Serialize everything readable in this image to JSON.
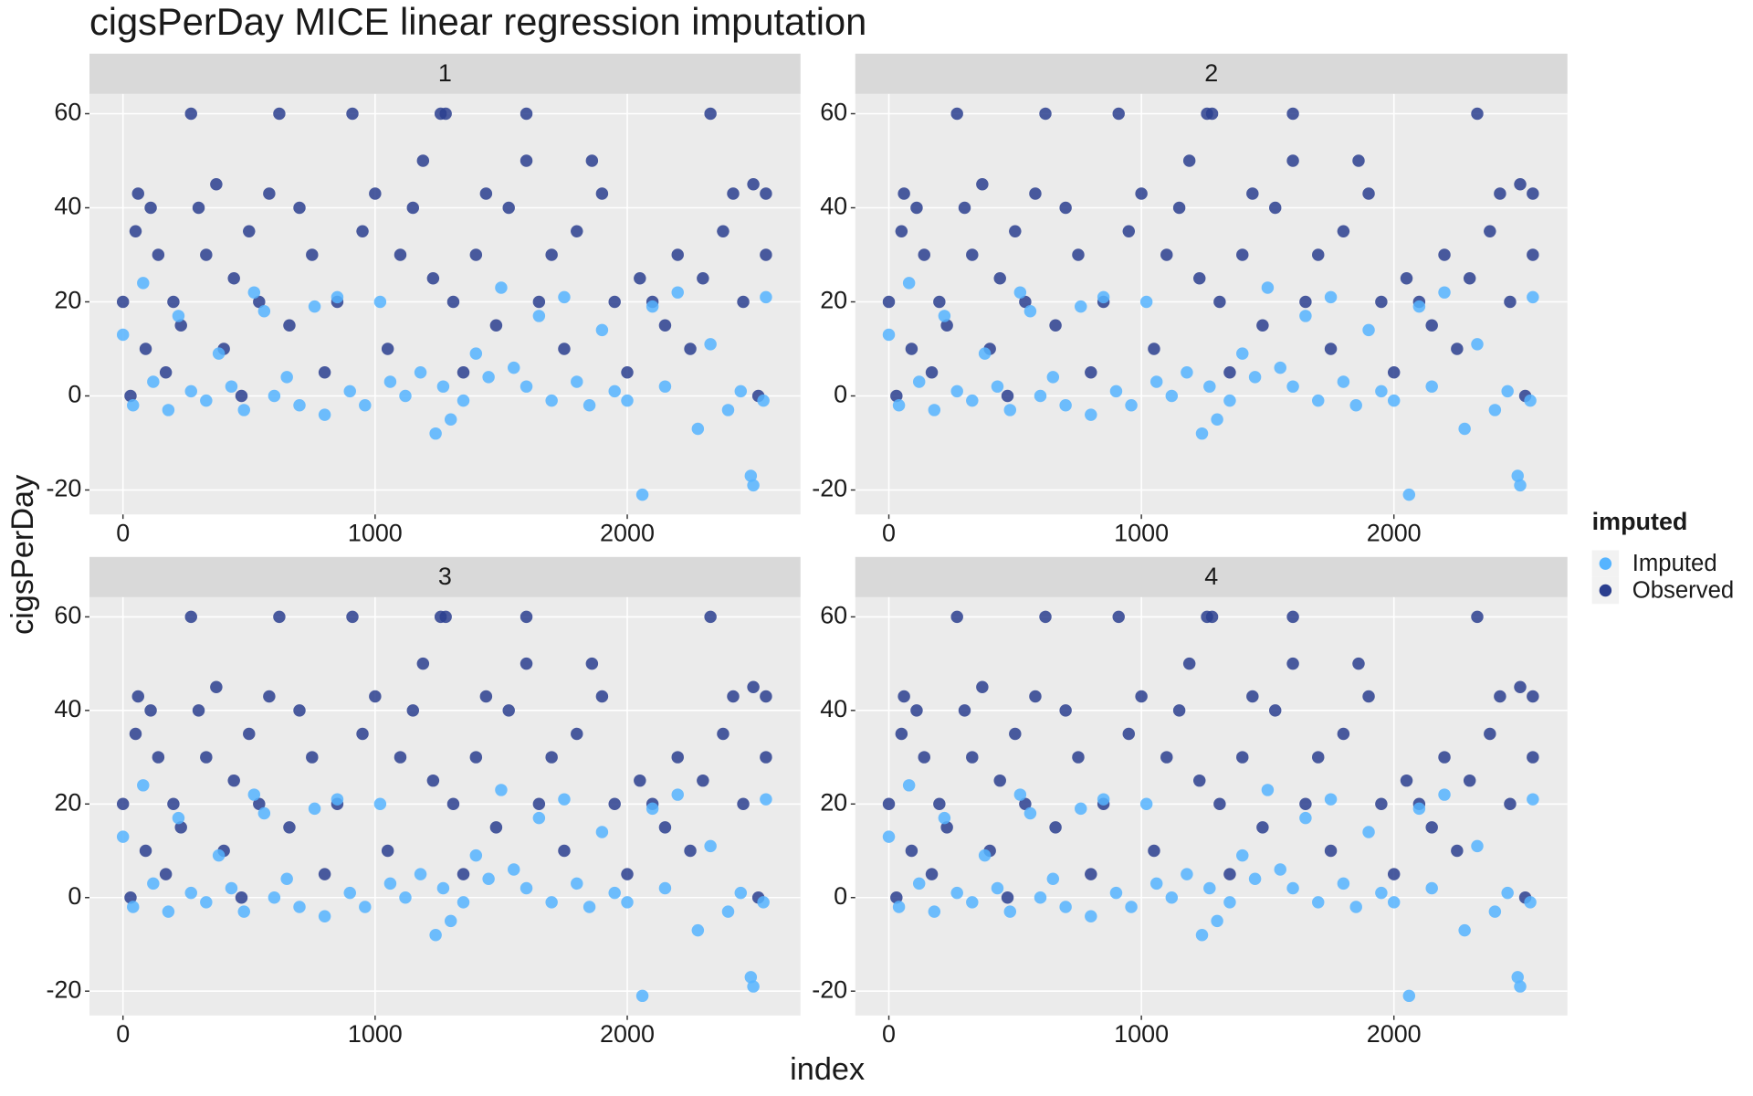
{
  "title": "cigsPerDay MICE linear regression imputation",
  "x_label": "index",
  "y_label": "cigsPerDay",
  "legend_title": "imputed",
  "chart_data": [
    {
      "type": "scatter",
      "panel": "1",
      "xlim": [
        -133,
        2687
      ],
      "ylim": [
        -25.2,
        64.2
      ],
      "xticks": [
        0,
        1000,
        2000
      ],
      "yticks": [
        -20,
        0,
        20,
        40,
        60
      ],
      "grid": true,
      "series": [
        {
          "name": "Imputed",
          "color": "#56B4FF",
          "x": [
            0,
            40,
            80,
            120,
            180,
            220,
            270,
            330,
            380,
            430,
            480,
            520,
            560,
            600,
            650,
            700,
            760,
            800,
            850,
            900,
            960,
            1020,
            1060,
            1120,
            1180,
            1240,
            1270,
            1300,
            1350,
            1400,
            1450,
            1500,
            1550,
            1600,
            1650,
            1700,
            1750,
            1800,
            1850,
            1900,
            1950,
            2000,
            2060,
            2100,
            2150,
            2200,
            2280,
            2330,
            2400,
            2450,
            2490,
            2500,
            2540,
            2550
          ],
          "values": [
            13,
            -2,
            24,
            3,
            -3,
            17,
            1,
            -1,
            9,
            2,
            -3,
            22,
            18,
            0,
            4,
            -2,
            19,
            -4,
            21,
            1,
            -2,
            20,
            3,
            0,
            5,
            -8,
            2,
            -5,
            -1,
            9,
            4,
            23,
            6,
            2,
            17,
            -1,
            21,
            3,
            -2,
            14,
            1,
            -1,
            -21,
            19,
            2,
            22,
            -7,
            11,
            -3,
            1,
            -17,
            -19,
            -1,
            21
          ]
        },
        {
          "name": "Observed",
          "color": "#2B3F8F",
          "x": [
            0,
            30,
            50,
            60,
            90,
            110,
            140,
            170,
            200,
            230,
            270,
            300,
            330,
            370,
            400,
            440,
            470,
            500,
            540,
            580,
            620,
            660,
            700,
            750,
            800,
            850,
            910,
            950,
            1000,
            1050,
            1100,
            1150,
            1190,
            1230,
            1260,
            1280,
            1310,
            1350,
            1400,
            1440,
            1480,
            1530,
            1600,
            1600,
            1650,
            1700,
            1750,
            1800,
            1860,
            1900,
            1950,
            2000,
            2050,
            2100,
            2150,
            2200,
            2250,
            2300,
            2330,
            2380,
            2420,
            2460,
            2500,
            2520,
            2550,
            2550
          ],
          "values": [
            20,
            0,
            35,
            43,
            10,
            40,
            30,
            5,
            20,
            15,
            60,
            40,
            30,
            45,
            10,
            25,
            0,
            35,
            20,
            43,
            60,
            15,
            40,
            30,
            5,
            20,
            60,
            35,
            43,
            10,
            30,
            40,
            50,
            25,
            60,
            60,
            20,
            5,
            30,
            43,
            15,
            40,
            60,
            50,
            20,
            30,
            10,
            35,
            50,
            43,
            20,
            5,
            25,
            20,
            15,
            30,
            10,
            25,
            60,
            35,
            43,
            20,
            45,
            0,
            30,
            43
          ]
        }
      ]
    },
    {
      "type": "scatter",
      "panel": "2",
      "xlim": [
        -133,
        2687
      ],
      "ylim": [
        -25.2,
        64.2
      ],
      "xticks": [
        0,
        1000,
        2000
      ],
      "yticks": [
        -20,
        0,
        20,
        40,
        60
      ],
      "grid": true,
      "series": [
        {
          "name": "Imputed",
          "color": "#56B4FF",
          "x": [
            0,
            40,
            80,
            120,
            180,
            220,
            270,
            330,
            380,
            430,
            480,
            520,
            560,
            600,
            650,
            700,
            760,
            800,
            850,
            900,
            960,
            1020,
            1060,
            1120,
            1180,
            1240,
            1270,
            1300,
            1350,
            1400,
            1450,
            1500,
            1550,
            1600,
            1650,
            1700,
            1750,
            1800,
            1850,
            1900,
            1950,
            2000,
            2060,
            2100,
            2150,
            2200,
            2280,
            2330,
            2400,
            2450,
            2490,
            2500,
            2540,
            2550
          ],
          "values": [
            13,
            -2,
            24,
            3,
            -3,
            17,
            1,
            -1,
            9,
            2,
            -3,
            22,
            18,
            0,
            4,
            -2,
            19,
            -4,
            21,
            1,
            -2,
            20,
            3,
            0,
            5,
            -8,
            2,
            -5,
            -1,
            9,
            4,
            23,
            6,
            2,
            17,
            -1,
            21,
            3,
            -2,
            14,
            1,
            -1,
            -21,
            19,
            2,
            22,
            -7,
            11,
            -3,
            1,
            -17,
            -19,
            -1,
            21
          ]
        },
        {
          "name": "Observed",
          "color": "#2B3F8F",
          "x": [
            0,
            30,
            50,
            60,
            90,
            110,
            140,
            170,
            200,
            230,
            270,
            300,
            330,
            370,
            400,
            440,
            470,
            500,
            540,
            580,
            620,
            660,
            700,
            750,
            800,
            850,
            910,
            950,
            1000,
            1050,
            1100,
            1150,
            1190,
            1230,
            1260,
            1280,
            1310,
            1350,
            1400,
            1440,
            1480,
            1530,
            1600,
            1600,
            1650,
            1700,
            1750,
            1800,
            1860,
            1900,
            1950,
            2000,
            2050,
            2100,
            2150,
            2200,
            2250,
            2300,
            2330,
            2380,
            2420,
            2460,
            2500,
            2520,
            2550,
            2550
          ],
          "values": [
            20,
            0,
            35,
            43,
            10,
            40,
            30,
            5,
            20,
            15,
            60,
            40,
            30,
            45,
            10,
            25,
            0,
            35,
            20,
            43,
            60,
            15,
            40,
            30,
            5,
            20,
            60,
            35,
            43,
            10,
            30,
            40,
            50,
            25,
            60,
            60,
            20,
            5,
            30,
            43,
            15,
            40,
            60,
            50,
            20,
            30,
            10,
            35,
            50,
            43,
            20,
            5,
            25,
            20,
            15,
            30,
            10,
            25,
            60,
            35,
            43,
            20,
            45,
            0,
            30,
            43
          ]
        }
      ]
    },
    {
      "type": "scatter",
      "panel": "3",
      "xlim": [
        -133,
        2687
      ],
      "ylim": [
        -25.2,
        64.2
      ],
      "xticks": [
        0,
        1000,
        2000
      ],
      "yticks": [
        -20,
        0,
        20,
        40,
        60
      ],
      "grid": true,
      "series": [
        {
          "name": "Imputed",
          "color": "#56B4FF",
          "x": [
            0,
            40,
            80,
            120,
            180,
            220,
            270,
            330,
            380,
            430,
            480,
            520,
            560,
            600,
            650,
            700,
            760,
            800,
            850,
            900,
            960,
            1020,
            1060,
            1120,
            1180,
            1240,
            1270,
            1300,
            1350,
            1400,
            1450,
            1500,
            1550,
            1600,
            1650,
            1700,
            1750,
            1800,
            1850,
            1900,
            1950,
            2000,
            2060,
            2100,
            2150,
            2200,
            2280,
            2330,
            2400,
            2450,
            2490,
            2500,
            2540,
            2550
          ],
          "values": [
            13,
            -2,
            24,
            3,
            -3,
            17,
            1,
            -1,
            9,
            2,
            -3,
            22,
            18,
            0,
            4,
            -2,
            19,
            -4,
            21,
            1,
            -2,
            20,
            3,
            0,
            5,
            -8,
            2,
            -5,
            -1,
            9,
            4,
            23,
            6,
            2,
            17,
            -1,
            21,
            3,
            -2,
            14,
            1,
            -1,
            -21,
            19,
            2,
            22,
            -7,
            11,
            -3,
            1,
            -17,
            -19,
            -1,
            21
          ]
        },
        {
          "name": "Observed",
          "color": "#2B3F8F",
          "x": [
            0,
            30,
            50,
            60,
            90,
            110,
            140,
            170,
            200,
            230,
            270,
            300,
            330,
            370,
            400,
            440,
            470,
            500,
            540,
            580,
            620,
            660,
            700,
            750,
            800,
            850,
            910,
            950,
            1000,
            1050,
            1100,
            1150,
            1190,
            1230,
            1260,
            1280,
            1310,
            1350,
            1400,
            1440,
            1480,
            1530,
            1600,
            1600,
            1650,
            1700,
            1750,
            1800,
            1860,
            1900,
            1950,
            2000,
            2050,
            2100,
            2150,
            2200,
            2250,
            2300,
            2330,
            2380,
            2420,
            2460,
            2500,
            2520,
            2550,
            2550
          ],
          "values": [
            20,
            0,
            35,
            43,
            10,
            40,
            30,
            5,
            20,
            15,
            60,
            40,
            30,
            45,
            10,
            25,
            0,
            35,
            20,
            43,
            60,
            15,
            40,
            30,
            5,
            20,
            60,
            35,
            43,
            10,
            30,
            40,
            50,
            25,
            60,
            60,
            20,
            5,
            30,
            43,
            15,
            40,
            60,
            50,
            20,
            30,
            10,
            35,
            50,
            43,
            20,
            5,
            25,
            20,
            15,
            30,
            10,
            25,
            60,
            35,
            43,
            20,
            45,
            0,
            30,
            43
          ]
        }
      ]
    },
    {
      "type": "scatter",
      "panel": "4",
      "xlim": [
        -133,
        2687
      ],
      "ylim": [
        -25.2,
        64.2
      ],
      "xticks": [
        0,
        1000,
        2000
      ],
      "yticks": [
        -20,
        0,
        20,
        40,
        60
      ],
      "grid": true,
      "series": [
        {
          "name": "Imputed",
          "color": "#56B4FF",
          "x": [
            0,
            40,
            80,
            120,
            180,
            220,
            270,
            330,
            380,
            430,
            480,
            520,
            560,
            600,
            650,
            700,
            760,
            800,
            850,
            900,
            960,
            1020,
            1060,
            1120,
            1180,
            1240,
            1270,
            1300,
            1350,
            1400,
            1450,
            1500,
            1550,
            1600,
            1650,
            1700,
            1750,
            1800,
            1850,
            1900,
            1950,
            2000,
            2060,
            2100,
            2150,
            2200,
            2280,
            2330,
            2400,
            2450,
            2490,
            2500,
            2540,
            2550
          ],
          "values": [
            13,
            -2,
            24,
            3,
            -3,
            17,
            1,
            -1,
            9,
            2,
            -3,
            22,
            18,
            0,
            4,
            -2,
            19,
            -4,
            21,
            1,
            -2,
            20,
            3,
            0,
            5,
            -8,
            2,
            -5,
            -1,
            9,
            4,
            23,
            6,
            2,
            17,
            -1,
            21,
            3,
            -2,
            14,
            1,
            -1,
            -21,
            19,
            2,
            22,
            -7,
            11,
            -3,
            1,
            -17,
            -19,
            -1,
            21
          ]
        },
        {
          "name": "Observed",
          "color": "#2B3F8F",
          "x": [
            0,
            30,
            50,
            60,
            90,
            110,
            140,
            170,
            200,
            230,
            270,
            300,
            330,
            370,
            400,
            440,
            470,
            500,
            540,
            580,
            620,
            660,
            700,
            750,
            800,
            850,
            910,
            950,
            1000,
            1050,
            1100,
            1150,
            1190,
            1230,
            1260,
            1280,
            1310,
            1350,
            1400,
            1440,
            1480,
            1530,
            1600,
            1600,
            1650,
            1700,
            1750,
            1800,
            1860,
            1900,
            1950,
            2000,
            2050,
            2100,
            2150,
            2200,
            2250,
            2300,
            2330,
            2380,
            2420,
            2460,
            2500,
            2520,
            2550,
            2550
          ],
          "values": [
            20,
            0,
            35,
            43,
            10,
            40,
            30,
            5,
            20,
            15,
            60,
            40,
            30,
            45,
            10,
            25,
            0,
            35,
            20,
            43,
            60,
            15,
            40,
            30,
            5,
            20,
            60,
            35,
            43,
            10,
            30,
            40,
            50,
            25,
            60,
            60,
            20,
            5,
            30,
            43,
            15,
            40,
            60,
            50,
            20,
            30,
            10,
            35,
            50,
            43,
            20,
            5,
            25,
            20,
            15,
            30,
            10,
            25,
            60,
            35,
            43,
            20,
            45,
            0,
            30,
            43
          ]
        }
      ]
    }
  ]
}
